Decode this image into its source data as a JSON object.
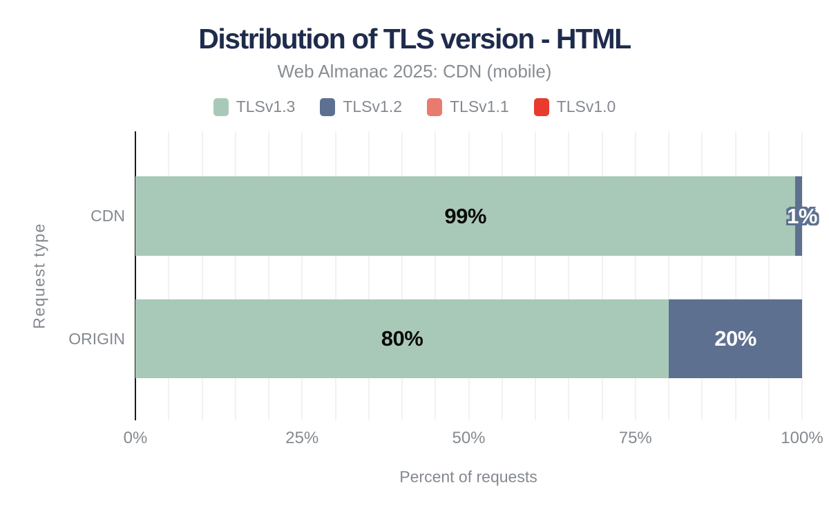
{
  "chart_data": {
    "type": "bar",
    "orientation": "horizontal",
    "stacked": true,
    "title": "Distribution of TLS version - HTML",
    "subtitle": "Web Almanac 2025: CDN (mobile)",
    "categories": [
      "CDN",
      "ORIGIN"
    ],
    "series": [
      {
        "name": "TLSv1.3",
        "color": "#a9c9b8",
        "values": [
          99,
          80
        ]
      },
      {
        "name": "TLSv1.2",
        "color": "#5e7090",
        "values": [
          1,
          20
        ]
      },
      {
        "name": "TLSv1.1",
        "color": "#e77b6d",
        "values": [
          0,
          0
        ]
      },
      {
        "name": "TLSv1.0",
        "color": "#e83a2d",
        "values": [
          0,
          0
        ]
      }
    ],
    "bar_labels": [
      [
        {
          "text": "99%",
          "style": "dark"
        },
        {
          "text": "1%",
          "style": "outlined"
        }
      ],
      [
        {
          "text": "80%",
          "style": "dark"
        },
        {
          "text": "20%",
          "style": "light"
        }
      ]
    ],
    "xlabel": "Percent of requests",
    "ylabel": "Request type",
    "xlim": [
      0,
      100
    ],
    "xticks": [
      {
        "label": "0%",
        "value": 0
      },
      {
        "label": "25%",
        "value": 25
      },
      {
        "label": "50%",
        "value": 50
      },
      {
        "label": "75%",
        "value": 75
      },
      {
        "label": "100%",
        "value": 100
      }
    ],
    "grid": {
      "axis": "x",
      "interval": 5,
      "color": "#f2f2f2"
    },
    "legend_position": "top"
  },
  "theme": {
    "title_color": "#1e2b4c",
    "muted_text": "#84898f",
    "axis_line": "#1a1a1a",
    "bar_label_dark": "#0a0a0a",
    "bar_label_light": "#ffffff",
    "bar_label_outline": "#5d7090",
    "gridline": "#f2f2f2",
    "background": "#ffffff"
  }
}
